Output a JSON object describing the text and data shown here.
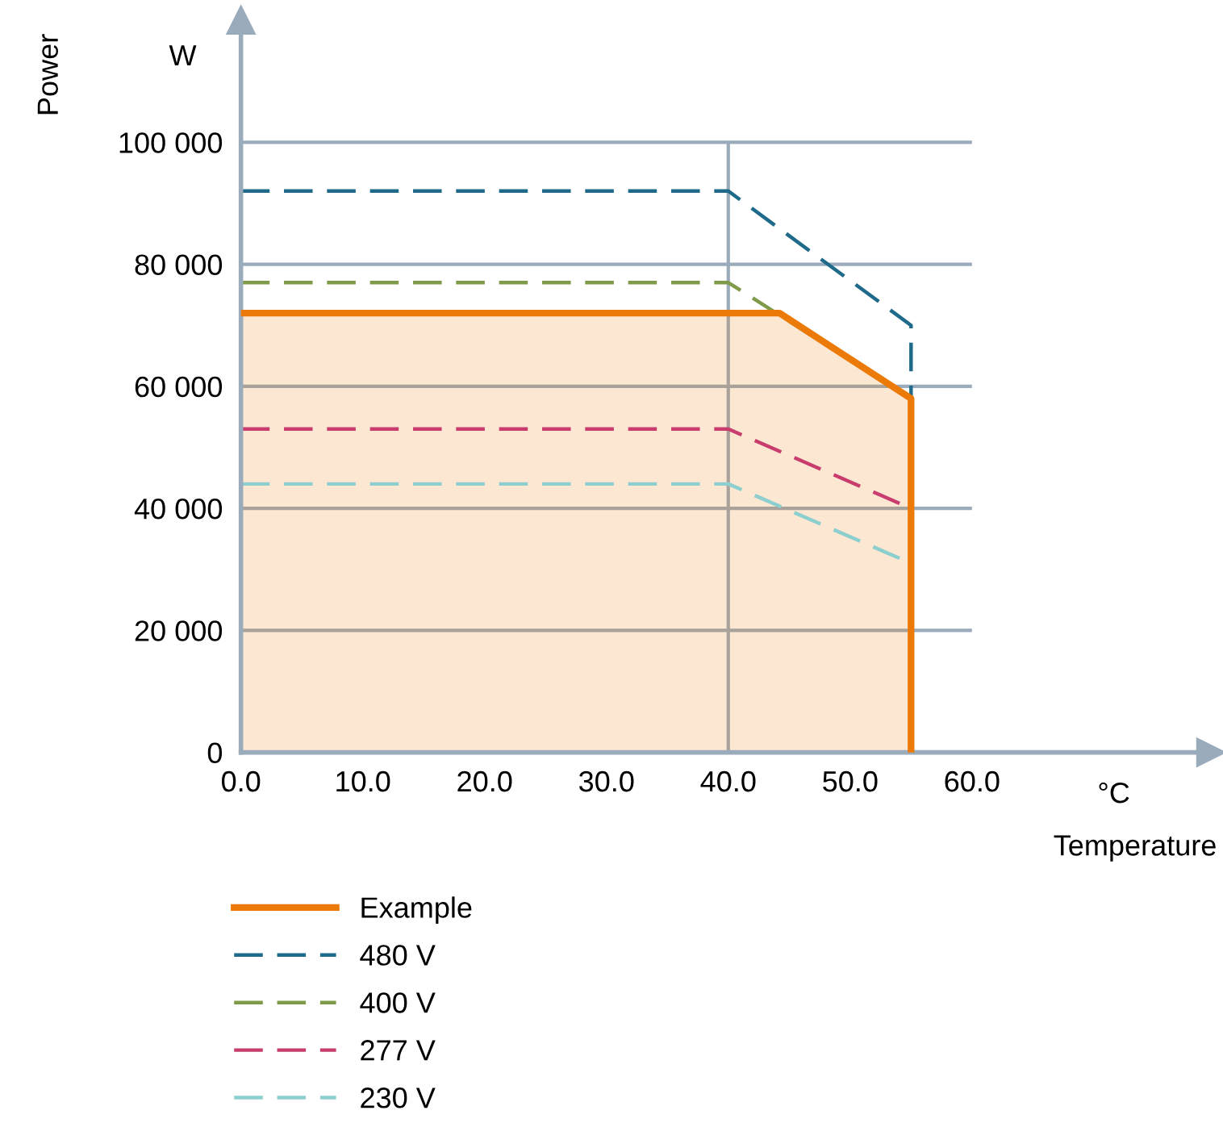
{
  "chart_data": {
    "type": "line",
    "xlabel": "Temperature",
    "ylabel": "Power",
    "annotations": [
      "W",
      "°C"
    ],
    "xlim": [
      0,
      79.6
    ],
    "ylim": [
      0,
      120000
    ],
    "xticks": [
      {
        "value": 0,
        "label": "0.0"
      },
      {
        "value": 10,
        "label": "10.0"
      },
      {
        "value": 20,
        "label": "20.0"
      },
      {
        "value": 30,
        "label": "30.0"
      },
      {
        "value": 40,
        "label": "40.0"
      },
      {
        "value": 50,
        "label": "50.0"
      },
      {
        "value": 60,
        "label": "60.0"
      }
    ],
    "yticks": [
      0,
      {
        "value": 20000,
        "label": "20 000"
      },
      {
        "value": 40000,
        "label": "40 000"
      },
      {
        "value": 60000,
        "label": "60 000"
      },
      {
        "value": 80000,
        "label": "80 000"
      },
      {
        "value": 100000,
        "label": "100 000"
      }
    ],
    "grid": "y",
    "ref_lines": [
      {
        "axis": "x",
        "value": 40,
        "color": "#9aabbb"
      }
    ],
    "legend": "bottom",
    "series": [
      {
        "name": "Example",
        "type": "area",
        "color": "#ec7a08",
        "line_style": "solid",
        "x": [
          0,
          44.2,
          55,
          55
        ],
        "values": [
          72000,
          72000,
          58000,
          0
        ]
      },
      {
        "name": "480 V",
        "color": "#1f6a8a",
        "line_style": "dashed",
        "x": [
          0,
          40,
          55,
          55
        ],
        "values": [
          92000,
          92000,
          70000,
          0
        ]
      },
      {
        "name": "400 V",
        "color": "#7f9a48",
        "line_style": "dashed",
        "x": [
          0,
          40,
          55,
          55
        ],
        "values": [
          77000,
          77000,
          58000,
          0
        ]
      },
      {
        "name": "277 V",
        "color": "#c83c6e",
        "line_style": "dashed",
        "x": [
          0,
          40,
          55,
          55
        ],
        "values": [
          53000,
          53000,
          40000,
          0
        ]
      },
      {
        "name": "230 V",
        "color": "#8dcfcf",
        "line_style": "dashed",
        "x": [
          0,
          40,
          55,
          55
        ],
        "values": [
          44000,
          44000,
          31000,
          0
        ]
      }
    ]
  }
}
